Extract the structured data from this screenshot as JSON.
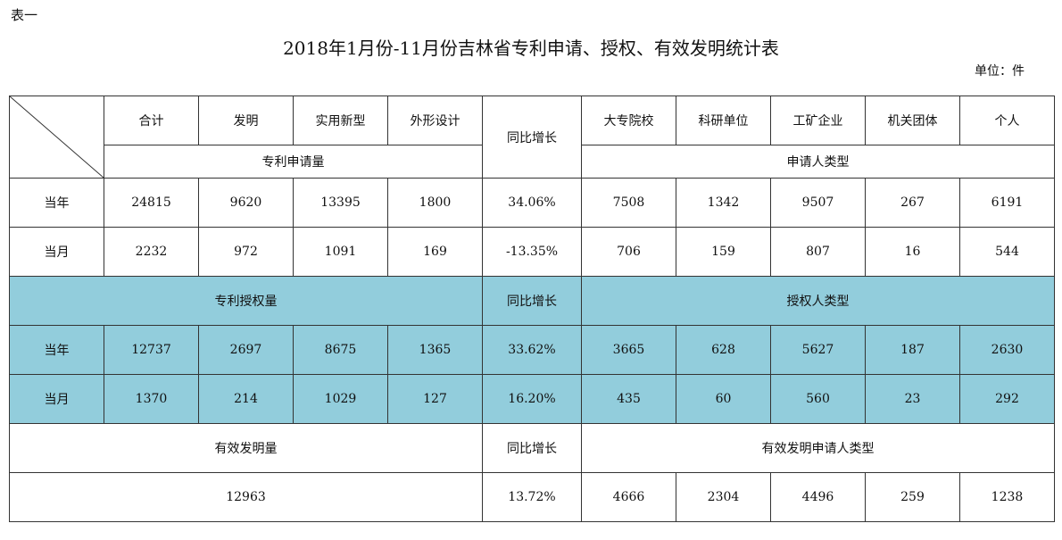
{
  "table_tag": "表一",
  "title": "2018年1月份-11月份吉林省专利申请、授权、有效发明统计表",
  "unit": "单位：件",
  "header": {
    "cols": [
      "合计",
      "发明",
      "实用新型",
      "外形设计"
    ],
    "yoy": "同比增长",
    "types": [
      "大专院校",
      "科研单位",
      "工矿企业",
      "机关团体",
      "个人"
    ],
    "group_apply": "专利申请量",
    "group_applicant": "申请人类型"
  },
  "apply_rows": [
    {
      "label": "当年",
      "values": [
        "24815",
        "9620",
        "13395",
        "1800"
      ],
      "yoy": "34.06%",
      "types": [
        "7508",
        "1342",
        "9507",
        "267",
        "6191"
      ]
    },
    {
      "label": "当月",
      "values": [
        "2232",
        "972",
        "1091",
        "169"
      ],
      "yoy": "-13.35%",
      "types": [
        "706",
        "159",
        "807",
        "16",
        "544"
      ]
    }
  ],
  "grant_header": {
    "group": "专利授权量",
    "yoy": "同比增长",
    "types_group": "授权人类型"
  },
  "grant_rows": [
    {
      "label": "当年",
      "values": [
        "12737",
        "2697",
        "8675",
        "1365"
      ],
      "yoy": "33.62%",
      "types": [
        "3665",
        "628",
        "5627",
        "187",
        "2630"
      ]
    },
    {
      "label": "当月",
      "values": [
        "1370",
        "214",
        "1029",
        "127"
      ],
      "yoy": "16.20%",
      "types": [
        "435",
        "60",
        "560",
        "23",
        "292"
      ]
    }
  ],
  "valid_header": {
    "group": "有效发明量",
    "yoy": "同比增长",
    "types_group": "有效发明申请人类型"
  },
  "valid_row": {
    "total": "12963",
    "yoy": "13.72%",
    "types": [
      "4666",
      "2304",
      "4496",
      "259",
      "1238"
    ]
  },
  "colors": {
    "teal_fill": "#92cddc",
    "border": "#333333"
  }
}
